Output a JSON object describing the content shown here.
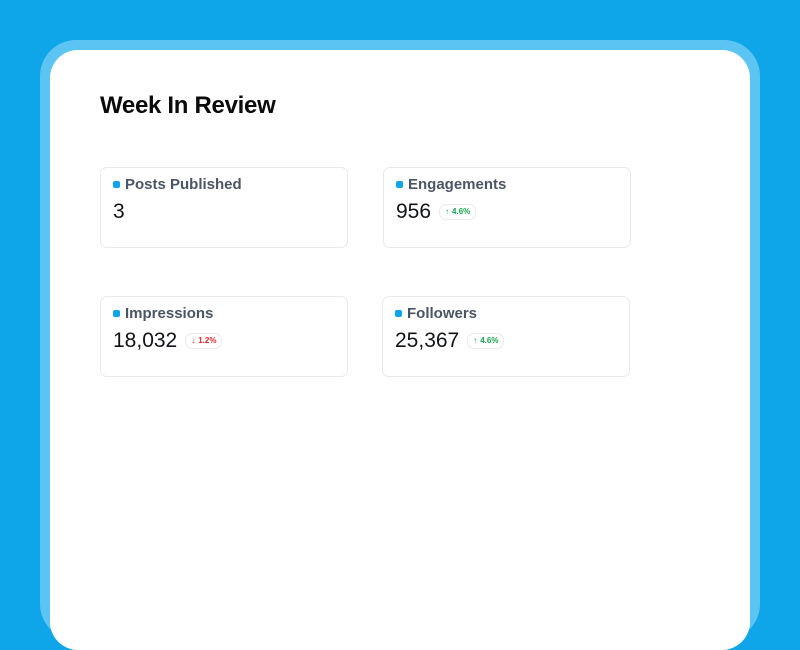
{
  "page": {
    "title": "Week In Review"
  },
  "colors": {
    "background": "#0ea5e9",
    "accent": "#0ea5e9",
    "up": "#16a34a",
    "down": "#dc2626"
  },
  "metrics": [
    {
      "label": "Posts Published",
      "value": "3",
      "change": "",
      "direction": ""
    },
    {
      "label": "Engagements",
      "value": "956",
      "change": "4.6%",
      "direction": "up",
      "arrow": "↑"
    },
    {
      "label": "Impressions",
      "value": "18,032",
      "change": "1.2%",
      "direction": "down",
      "arrow": "↓"
    },
    {
      "label": "Followers",
      "value": "25,367",
      "change": "4.6%",
      "direction": "up",
      "arrow": "↑"
    }
  ]
}
